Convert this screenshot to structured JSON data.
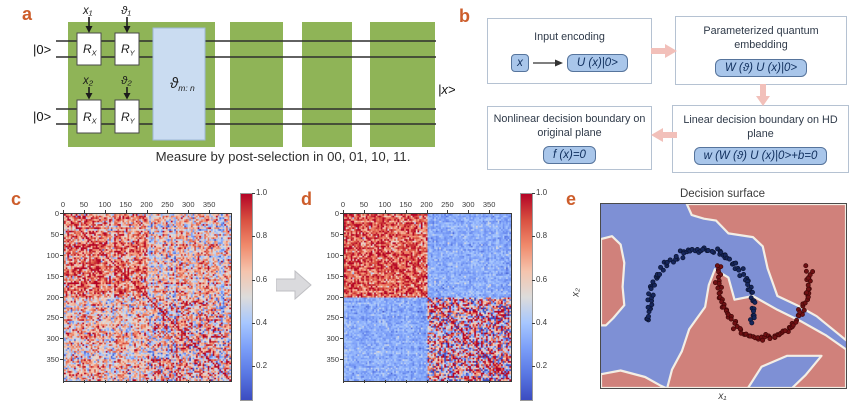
{
  "panels": {
    "a": {
      "letter": "a",
      "ket_zero": "|0>",
      "output_ket": "|x>",
      "inputs": {
        "x1": "x₁",
        "theta1": "ϑ₁",
        "x2": "x₂",
        "theta2": "ϑ₂"
      },
      "gates": {
        "rx": {
          "main": "R",
          "sub": "X"
        },
        "ry": {
          "main": "R",
          "sub": "Y"
        },
        "embed": {
          "main": "ϑ",
          "sub": "m: n"
        }
      },
      "caption": "Measure by post-selection in 00, 01, 10, 11."
    },
    "b": {
      "letter": "b",
      "boxes": [
        {
          "title": "Input encoding",
          "chip": "x",
          "formula": "U (x)|0>"
        },
        {
          "title": "Parameterized quantum embedding",
          "formula": "W (ϑ) U (x)|0>"
        },
        {
          "title": "Nonlinear decision boundary on original plane",
          "formula": "f (x)=0"
        },
        {
          "title": "Linear decision boundary on HD plane",
          "formula": "w (W (ϑ) U (x)|0>+b=0"
        }
      ]
    },
    "c": {
      "letter": "c"
    },
    "d": {
      "letter": "d"
    },
    "e": {
      "letter": "e"
    }
  },
  "colors": {
    "panel_letter": "#cd5d2b",
    "circuit_green": "#8fb457",
    "embed_blue": "#cadcf1",
    "flow_chip_blue": "#a9c6ea",
    "flow_arrow_pink": "#f2c0ba",
    "between_arrow_gray": "#dadadd"
  },
  "chart_data": [
    {
      "id": "c",
      "type": "heatmap",
      "description": "Quantum kernel (Gram) matrix before training: noisy warm texture with weak quadrant contrast and scattered blue streaks",
      "matrix_size": 400,
      "x_ticks": [
        0,
        50,
        100,
        150,
        200,
        250,
        300,
        350
      ],
      "y_ticks": [
        0,
        50,
        100,
        150,
        200,
        250,
        300,
        350
      ],
      "colormap": "coolwarm",
      "value_range": [
        0.05,
        1.0
      ],
      "colorbar_ticks": [
        1.0,
        0.8,
        0.6,
        0.4,
        0.2
      ],
      "streak_chance": 0.07,
      "blocks": {
        "tl": {
          "base": 0.8,
          "amp": 0.45,
          "pix": 0.18
        },
        "tr": {
          "base": 0.66,
          "amp": 0.45,
          "pix": 0.18
        },
        "bl": {
          "base": 0.66,
          "amp": 0.45,
          "pix": 0.18
        },
        "br": {
          "base": 0.7,
          "amp": 0.4,
          "pix": 0.25
        }
      },
      "seed": 42
    },
    {
      "id": "d",
      "type": "heatmap",
      "description": "Quantum kernel matrix after training: strong 2x2 block structure, red within-class blocks (0-200,200-400), light blue between-class blocks",
      "matrix_size": 400,
      "x_ticks": [
        0,
        50,
        100,
        150,
        200,
        250,
        300,
        350
      ],
      "y_ticks": [
        0,
        50,
        100,
        150,
        200,
        250,
        300,
        350
      ],
      "colormap": "coolwarm",
      "value_range": [
        0.05,
        1.0
      ],
      "colorbar_ticks": [
        1.0,
        0.8,
        0.6,
        0.4,
        0.2
      ],
      "streak_chance": 0.0,
      "blocks": {
        "tl": {
          "base": 0.84,
          "amp": 0.25,
          "pix": 0.15
        },
        "tr": {
          "base": 0.33,
          "amp": 0.18,
          "pix": 0.06
        },
        "bl": {
          "base": 0.33,
          "amp": 0.18,
          "pix": 0.06
        },
        "br": {
          "base": 0.6,
          "amp": 0.3,
          "pix": 0.38
        }
      },
      "seed": 7
    },
    {
      "id": "e",
      "type": "scatter",
      "title": "Decision surface",
      "xlabel": "x₁",
      "ylabel": "x₂",
      "description": "Two-moons dataset over learned red/blue decision regions separated by white boundary",
      "colors": {
        "region_red": "#d0817b",
        "region_blue": "#7e90d5",
        "boundary": "#f3eee5",
        "moon0": "#16265c",
        "moon0_edge": "#0b1430",
        "moon1": "#701013",
        "moon1_edge": "#3f0808"
      },
      "red_regions": [
        [
          [
            0.35,
            0
          ],
          [
            0.37,
            0.06
          ],
          [
            0.42,
            0.08
          ],
          [
            0.47,
            0.09
          ],
          [
            0.52,
            0.16
          ],
          [
            0.62,
            0.18
          ],
          [
            0.66,
            0.23
          ],
          [
            0.68,
            0.35
          ],
          [
            0.72,
            0.5
          ],
          [
            0.8,
            0.55
          ],
          [
            0.88,
            0.61
          ],
          [
            1,
            0.74
          ],
          [
            1,
            0
          ]
        ],
        [
          [
            0.27,
            1
          ],
          [
            0.29,
            0.9
          ],
          [
            0.33,
            0.8
          ],
          [
            0.36,
            0.68
          ],
          [
            0.425,
            0.56
          ],
          [
            0.44,
            0.44
          ],
          [
            0.465,
            0.355
          ],
          [
            0.52,
            0.4
          ],
          [
            0.545,
            0.52
          ],
          [
            0.62,
            0.5
          ],
          [
            0.72,
            0.575
          ],
          [
            0.82,
            0.64
          ],
          [
            0.92,
            0.715
          ],
          [
            1,
            0.79
          ],
          [
            1,
            1
          ]
        ],
        [
          [
            0,
            0.19
          ],
          [
            0.045,
            0.175
          ],
          [
            0.08,
            0.22
          ],
          [
            0.095,
            0.32
          ],
          [
            0.088,
            0.45
          ],
          [
            0.095,
            0.55
          ],
          [
            0.05,
            0.62
          ],
          [
            0.02,
            0.66
          ],
          [
            0,
            0.66
          ]
        ],
        [
          [
            0,
            0.925
          ],
          [
            0.08,
            0.905
          ],
          [
            0.18,
            0.94
          ],
          [
            0.24,
            0.985
          ],
          [
            0.265,
            1
          ],
          [
            0,
            1
          ]
        ]
      ],
      "blue_overlays": [
        [
          [
            0.6,
            1
          ],
          [
            0.655,
            0.885
          ],
          [
            0.76,
            0.825
          ],
          [
            0.9,
            0.825
          ],
          [
            0.835,
            0.93
          ],
          [
            0.78,
            1
          ]
        ]
      ],
      "moons": [
        {
          "class": 0,
          "cx": 0.408,
          "cy": 0.57,
          "rx": 0.212,
          "ry": 0.32,
          "half": "upper",
          "n": 95,
          "jitter": 1.6
        },
        {
          "class": 1,
          "cx": 0.665,
          "cy": 0.41,
          "rx": 0.184,
          "ry": 0.32,
          "half": "lower",
          "n": 95,
          "jitter": 1.6
        }
      ],
      "seed": 11
    }
  ]
}
